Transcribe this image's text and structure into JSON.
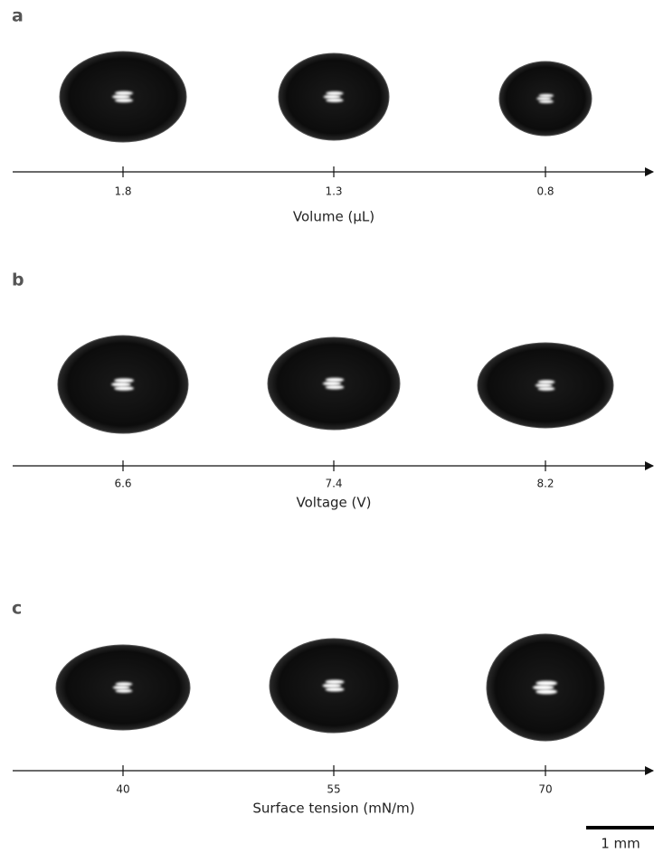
{
  "panels": [
    {
      "label": "a",
      "axis_title": "Volume (μL)",
      "ticks": [
        "1.8",
        "1.3",
        "0.8"
      ]
    },
    {
      "label": "b",
      "axis_title": "Voltage (V)",
      "ticks": [
        "6.6",
        "7.4",
        "8.2"
      ]
    },
    {
      "label": "c",
      "axis_title": "Surface tension (mN/m)",
      "ticks": [
        "40",
        "55",
        "70"
      ]
    }
  ],
  "scale_bar": "1 mm"
}
